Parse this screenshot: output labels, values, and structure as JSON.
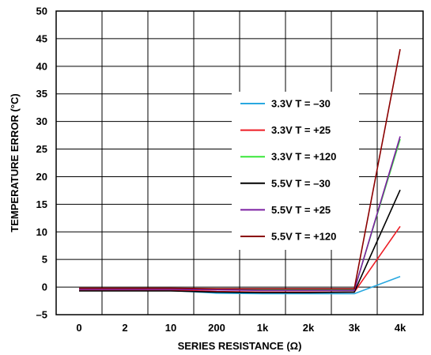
{
  "chart_data": {
    "type": "line",
    "xlabel": "SERIES RESISTANCE (Ω)",
    "ylabel": "TEMPERATURE ERROR (°C)",
    "categories": [
      "0",
      "2",
      "10",
      "200",
      "1k",
      "2k",
      "3k",
      "4k"
    ],
    "y_ticks": [
      "–5",
      "0",
      "5",
      "10",
      "15",
      "20",
      "25",
      "30",
      "35",
      "40",
      "45",
      "50"
    ],
    "ylim": [
      -5,
      50
    ],
    "grid": true,
    "legend_position": "center-right",
    "series": [
      {
        "name": "3.3V T = –30",
        "color": "#29a8e0",
        "values": [
          -0.6,
          -0.6,
          -0.6,
          -1.1,
          -1.2,
          -1.2,
          -1.2,
          1.9
        ]
      },
      {
        "name": "3.3V T = +25",
        "color": "#ed1c24",
        "values": [
          -0.5,
          -0.5,
          -0.5,
          -0.8,
          -0.9,
          -0.9,
          -0.9,
          11.0
        ]
      },
      {
        "name": "3.3V T = +120",
        "color": "#39e639",
        "values": [
          -0.3,
          -0.3,
          -0.3,
          -0.4,
          -0.5,
          -0.5,
          -0.5,
          26.8
        ]
      },
      {
        "name": "5.5V T = –30",
        "color": "#000000",
        "values": [
          -0.7,
          -0.7,
          -0.7,
          -0.9,
          -1.0,
          -1.0,
          -0.9,
          17.6
        ]
      },
      {
        "name": "5.5V T = +25",
        "color": "#7b1fa2",
        "values": [
          -0.4,
          -0.4,
          -0.4,
          -0.5,
          -0.6,
          -0.6,
          -0.6,
          27.3
        ]
      },
      {
        "name": "5.5V T = +120",
        "color": "#8b0000",
        "values": [
          -0.2,
          -0.2,
          -0.2,
          -0.3,
          -0.3,
          -0.3,
          -0.3,
          43.1
        ]
      }
    ]
  }
}
